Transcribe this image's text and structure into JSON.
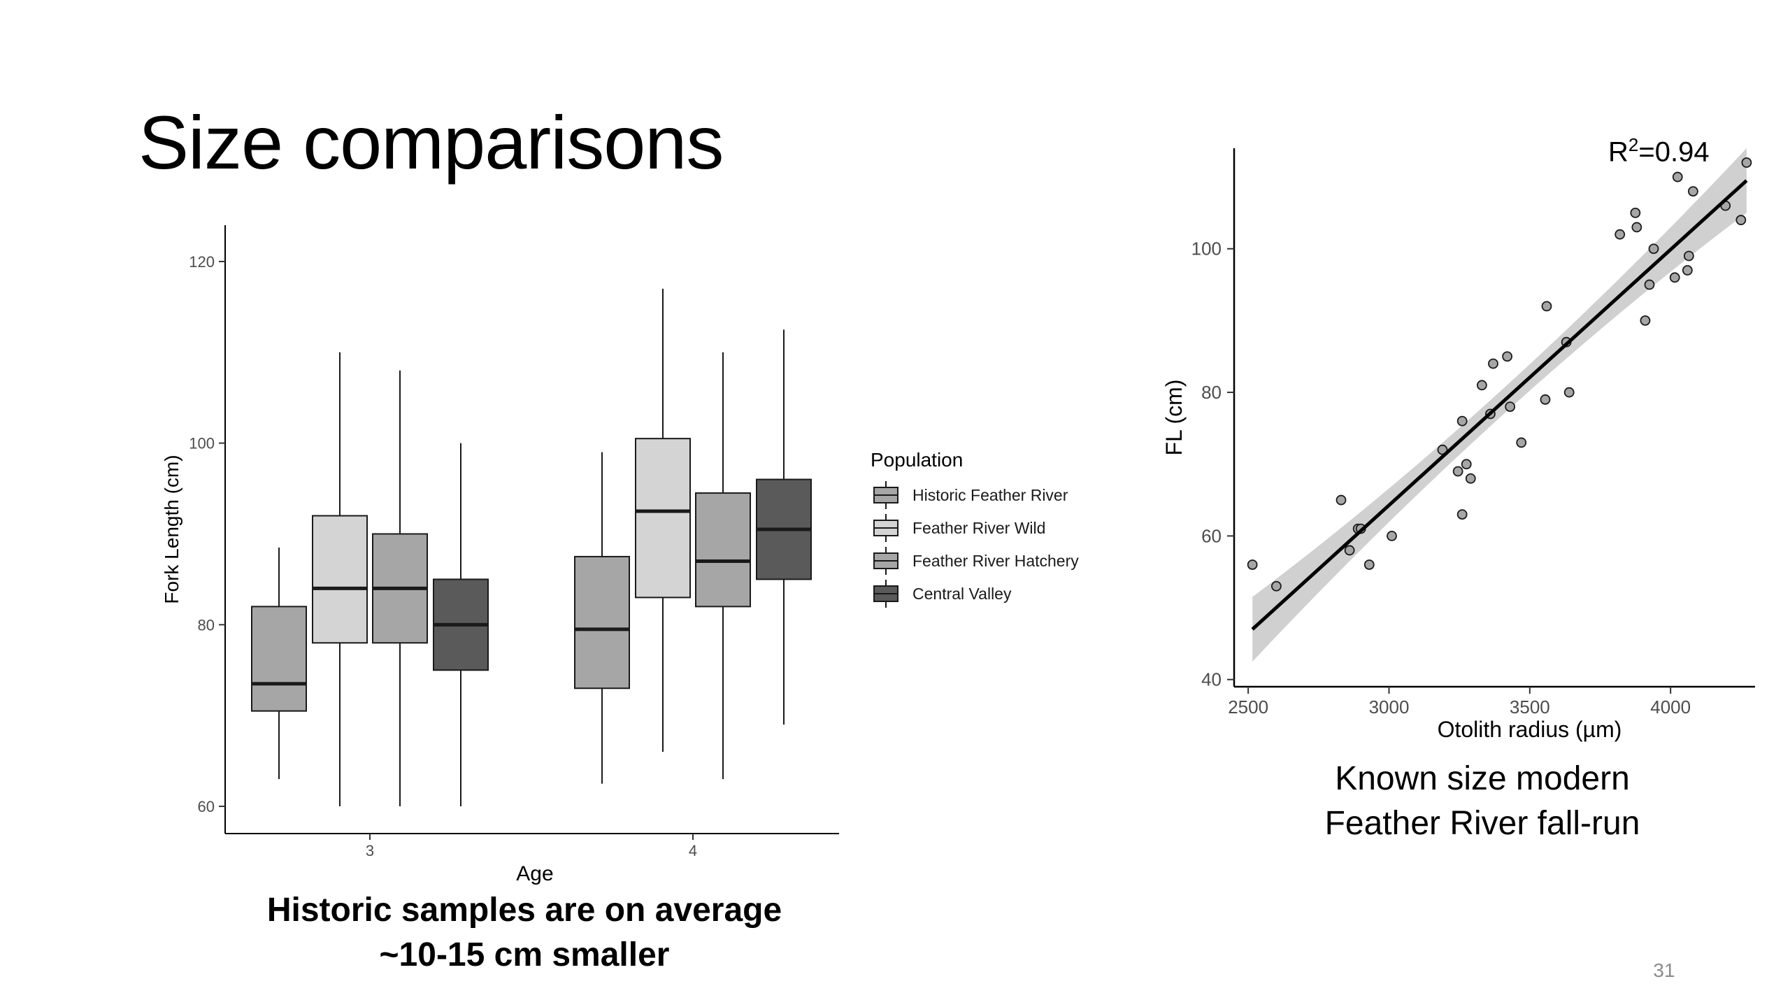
{
  "slide": {
    "title": "Size comparisons",
    "left_caption_line1": "Historic samples are on average",
    "left_caption_line2": "~10-15 cm smaller",
    "right_caption_line1": "Known size modern",
    "right_caption_line2": "Feather River fall-run",
    "r2_prefix": "R",
    "r2_sup": "2",
    "r2_value": "=0.94",
    "page_number": "31"
  },
  "chart_data": [
    {
      "type": "boxplot",
      "title": "",
      "xlabel": "Age",
      "ylabel": "Fork Length (cm)",
      "ylim": [
        57,
        124
      ],
      "yticks": [
        60,
        80,
        100,
        120
      ],
      "categories": [
        "3",
        "4"
      ],
      "legend_title": "Population",
      "legend_position": "right",
      "series": [
        {
          "name": "Historic Feather River",
          "color": "#a6a6a6",
          "boxes": [
            {
              "min": 63,
              "q1": 70.5,
              "median": 73.5,
              "q3": 82,
              "max": 88.5
            },
            {
              "min": 62.5,
              "q1": 73,
              "median": 79.5,
              "q3": 87.5,
              "max": 99
            }
          ]
        },
        {
          "name": "Feather River Wild",
          "color": "#d4d4d4",
          "boxes": [
            {
              "min": 60,
              "q1": 78,
              "median": 84,
              "q3": 92,
              "max": 110
            },
            {
              "min": 66,
              "q1": 83,
              "median": 92.5,
              "q3": 100.5,
              "max": 117
            }
          ]
        },
        {
          "name": "Feather River Hatchery",
          "color": "#a6a6a6",
          "boxes": [
            {
              "min": 60,
              "q1": 78,
              "median": 84,
              "q3": 90,
              "max": 108
            },
            {
              "min": 63,
              "q1": 82,
              "median": 87,
              "q3": 94.5,
              "max": 110
            }
          ]
        },
        {
          "name": "Central Valley",
          "color": "#5a5a5a",
          "boxes": [
            {
              "min": 60,
              "q1": 75,
              "median": 80,
              "q3": 85,
              "max": 100
            },
            {
              "min": 69,
              "q1": 85,
              "median": 90.5,
              "q3": 96,
              "max": 112.5
            }
          ]
        }
      ]
    },
    {
      "type": "scatter",
      "title": "",
      "xlabel": "Otolith radius (µm)",
      "ylabel": "FL (cm)",
      "xlim": [
        2450,
        4300
      ],
      "ylim": [
        39,
        114
      ],
      "xticks": [
        2500,
        3000,
        3500,
        4000
      ],
      "yticks": [
        40,
        60,
        80,
        100
      ],
      "annotation": "R2=0.94",
      "points": [
        [
          2515,
          56
        ],
        [
          2600,
          53
        ],
        [
          2830,
          65
        ],
        [
          2860,
          58
        ],
        [
          2890,
          61
        ],
        [
          2900,
          61
        ],
        [
          2930,
          56
        ],
        [
          3010,
          60
        ],
        [
          3190,
          72
        ],
        [
          3245,
          69
        ],
        [
          3260,
          76
        ],
        [
          3260,
          63
        ],
        [
          3275,
          70
        ],
        [
          3290,
          68
        ],
        [
          3330,
          81
        ],
        [
          3360,
          77
        ],
        [
          3370,
          84
        ],
        [
          3420,
          85
        ],
        [
          3430,
          78
        ],
        [
          3470,
          73
        ],
        [
          3555,
          79
        ],
        [
          3560,
          92
        ],
        [
          3630,
          87
        ],
        [
          3640,
          80
        ],
        [
          3820,
          102
        ],
        [
          3875,
          105
        ],
        [
          3880,
          103
        ],
        [
          3910,
          90
        ],
        [
          3925,
          95
        ],
        [
          3940,
          100
        ],
        [
          4015,
          96
        ],
        [
          4025,
          110
        ],
        [
          4060,
          97
        ],
        [
          4065,
          99
        ],
        [
          4080,
          108
        ],
        [
          4195,
          106
        ],
        [
          4250,
          104
        ],
        [
          4270,
          112
        ]
      ],
      "fit": {
        "x0": 2515,
        "y0": 47,
        "x1": 4270,
        "y1": 109.5
      },
      "ci_halfwidth": {
        "ends": 4.5,
        "middle": 1.8
      }
    }
  ]
}
